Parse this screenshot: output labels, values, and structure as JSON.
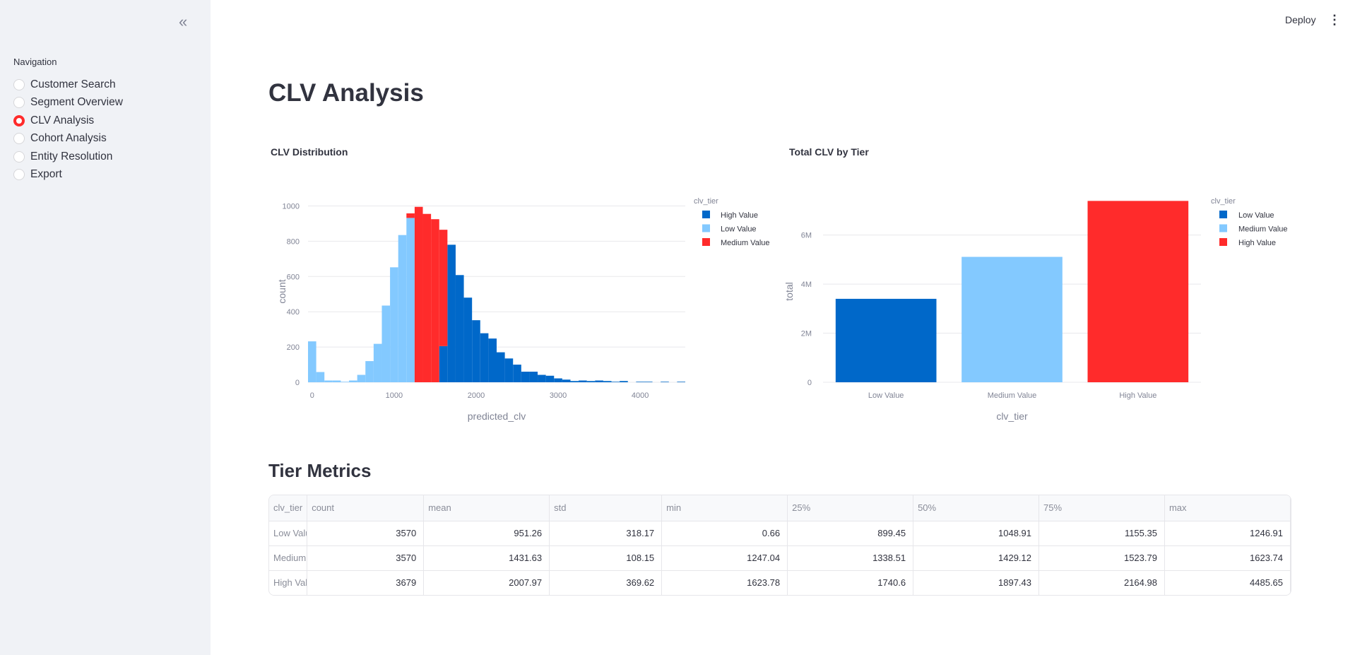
{
  "sidebar": {
    "collapse_icon": "double-chevron-left",
    "nav_label": "Navigation",
    "items": [
      "Customer Search",
      "Segment Overview",
      "CLV Analysis",
      "Cohort Analysis",
      "Entity Resolution",
      "Export"
    ],
    "selected": "CLV Analysis"
  },
  "header": {
    "deploy": "Deploy",
    "menu_icon": "vertical-ellipsis"
  },
  "page_title": "CLV Analysis",
  "colors": {
    "dark_blue": "#0068c9",
    "light_blue": "#83c9ff",
    "red": "#ff2b2b",
    "accent": "#ff2b2b"
  },
  "chart_data": [
    {
      "type": "bar",
      "stacked": true,
      "title": "CLV Distribution",
      "xlabel": "predicted_clv",
      "ylabel": "count",
      "legend_title": "clv_tier",
      "legend_position": "top-right",
      "xlim": [
        -50,
        4550
      ],
      "ylim": [
        0,
        1030
      ],
      "xticks": [
        "0",
        "1000",
        "2000",
        "3000",
        "4000"
      ],
      "yticks": [
        "0",
        "200",
        "400",
        "600",
        "800",
        "1000"
      ],
      "grid": true,
      "bin_width": 100,
      "bin_starts": [
        -50,
        50,
        150,
        250,
        350,
        450,
        550,
        650,
        750,
        850,
        950,
        1050,
        1150,
        1250,
        1350,
        1450,
        1550,
        1650,
        1750,
        1850,
        1950,
        2050,
        2150,
        2250,
        2350,
        2450,
        2550,
        2650,
        2750,
        2850,
        2950,
        3050,
        3150,
        3250,
        3350,
        3450,
        3550,
        3650,
        3750,
        3850,
        3950,
        4050,
        4150,
        4250,
        4350,
        4450
      ],
      "series": [
        {
          "name": "High Value",
          "color": "#0068c9",
          "values": [
            0,
            0,
            0,
            0,
            0,
            0,
            0,
            0,
            0,
            0,
            0,
            0,
            0,
            0,
            0,
            0,
            205,
            780,
            608,
            480,
            352,
            278,
            248,
            170,
            135,
            100,
            60,
            60,
            42,
            37,
            22,
            15,
            7,
            10,
            7,
            10,
            7,
            3,
            7,
            0,
            3,
            3,
            0,
            3,
            0,
            3
          ]
        },
        {
          "name": "Low Value",
          "color": "#83c9ff",
          "values": [
            232,
            58,
            10,
            10,
            3,
            10,
            42,
            120,
            218,
            435,
            652,
            835,
            932,
            0,
            0,
            0,
            0,
            0,
            0,
            0,
            0,
            0,
            0,
            0,
            0,
            0,
            0,
            0,
            0,
            0,
            0,
            0,
            0,
            0,
            0,
            0,
            0,
            0,
            0,
            0,
            0,
            0,
            0,
            0,
            0,
            0
          ]
        },
        {
          "name": "Medium Value",
          "color": "#ff2b2b",
          "values": [
            0,
            0,
            0,
            0,
            0,
            0,
            0,
            0,
            0,
            0,
            0,
            0,
            26,
            995,
            955,
            925,
            660,
            0,
            0,
            0,
            0,
            0,
            0,
            0,
            0,
            0,
            0,
            0,
            0,
            0,
            0,
            0,
            0,
            0,
            0,
            0,
            0,
            0,
            0,
            0,
            0,
            0,
            0,
            0,
            0,
            0
          ]
        }
      ]
    },
    {
      "type": "bar",
      "title": "Total CLV by Tier",
      "xlabel": "clv_tier",
      "ylabel": "total",
      "legend_title": "clv_tier",
      "legend_position": "top-right",
      "ylim": [
        0,
        7400000
      ],
      "yticks": [
        "0",
        "2M",
        "4M",
        "6M"
      ],
      "grid": true,
      "categories": [
        "Low Value",
        "Medium Value",
        "High Value"
      ],
      "values": [
        3400000,
        5110000,
        7390000
      ],
      "colors": [
        "#0068c9",
        "#83c9ff",
        "#ff2b2b"
      ]
    }
  ],
  "tier_metrics": {
    "title": "Tier Metrics",
    "columns": [
      "clv_tier",
      "count",
      "mean",
      "std",
      "min",
      "25%",
      "50%",
      "75%",
      "max"
    ],
    "rows": [
      [
        "Low Value",
        "3570",
        "951.26",
        "318.17",
        "0.66",
        "899.45",
        "1048.91",
        "1155.35",
        "1246.91"
      ],
      [
        "Medium Value",
        "3570",
        "1431.63",
        "108.15",
        "1247.04",
        "1338.51",
        "1429.12",
        "1523.79",
        "1623.74"
      ],
      [
        "High Value",
        "3679",
        "2007.97",
        "369.62",
        "1623.78",
        "1740.6",
        "1897.43",
        "2164.98",
        "4485.65"
      ]
    ]
  }
}
